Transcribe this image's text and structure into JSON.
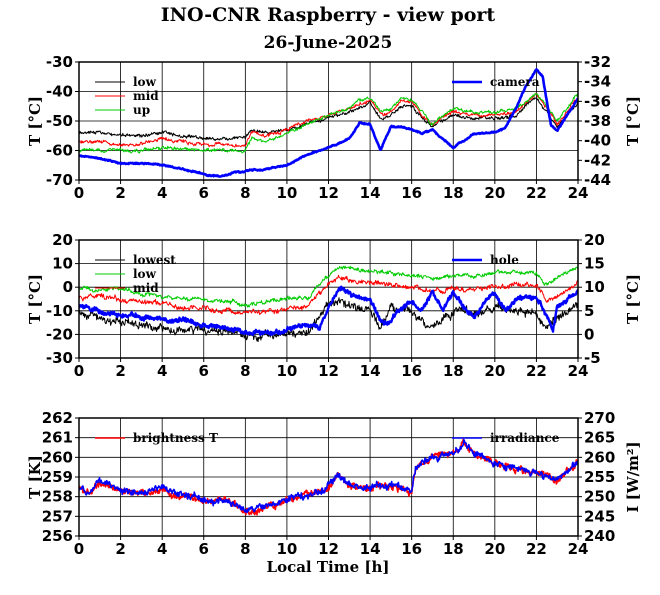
{
  "title": "INO-CNR Raspberry - view port",
  "subtitle": "26-June-2025",
  "xlabel": "Local Time [h]",
  "colors": {
    "black": "#000000",
    "red": "#ff0000",
    "green": "#00cc00",
    "blue": "#0000ff"
  },
  "chart_data": [
    {
      "type": "line",
      "id": "top",
      "xlim": [
        0,
        24
      ],
      "xticks": [
        0,
        2,
        4,
        6,
        8,
        10,
        12,
        14,
        16,
        18,
        20,
        22,
        24
      ],
      "ylim": [
        -70,
        -30
      ],
      "yticks": [
        -70,
        -60,
        -50,
        -40,
        -30
      ],
      "ylabel": "T [°C]",
      "y2lim": [
        -44,
        -32
      ],
      "y2ticks": [
        -44,
        -42,
        -40,
        -38,
        -36,
        -34,
        -32
      ],
      "y2label": "T [°C]",
      "grid": true,
      "legend": "top-left (low, mid, up); top-right (camera)",
      "series": [
        {
          "name": "low",
          "color": "black",
          "axis": "left",
          "width": 1,
          "noise": 0.8,
          "x": [
            0,
            1,
            2,
            3,
            4,
            5,
            6,
            7,
            8,
            8.3,
            9,
            10,
            11,
            12,
            13,
            13.5,
            14,
            14.5,
            15,
            15.5,
            16,
            16.5,
            17,
            18,
            19,
            20,
            21,
            22,
            22.5,
            23,
            24
          ],
          "y": [
            -54,
            -54,
            -55,
            -55,
            -54,
            -55,
            -56,
            -56,
            -56,
            -53,
            -54,
            -53,
            -51,
            -49,
            -47,
            -45,
            -44,
            -49,
            -48,
            -45,
            -45,
            -49,
            -52,
            -48,
            -49,
            -49,
            -48,
            -42,
            -47,
            -52,
            -44
          ]
        },
        {
          "name": "mid",
          "color": "red",
          "axis": "left",
          "width": 1,
          "noise": 0.8,
          "x": [
            0,
            1,
            2,
            3,
            4,
            5,
            6,
            7,
            8,
            8.3,
            9,
            10,
            11,
            12,
            13,
            13.5,
            14,
            14.5,
            15,
            15.5,
            16,
            16.5,
            17,
            18,
            19,
            20,
            21,
            22,
            22.5,
            23,
            24
          ],
          "y": [
            -57,
            -57,
            -58,
            -58,
            -56,
            -57,
            -58,
            -58,
            -58,
            -54,
            -55,
            -53,
            -50,
            -48,
            -46,
            -44,
            -43,
            -48,
            -47,
            -43,
            -43,
            -48,
            -51,
            -47,
            -48,
            -48,
            -47,
            -41,
            -46,
            -51,
            -42
          ]
        },
        {
          "name": "up",
          "color": "green",
          "axis": "left",
          "width": 1,
          "noise": 0.8,
          "x": [
            0,
            1,
            2,
            3,
            4,
            5,
            6,
            7,
            8,
            8.3,
            9,
            10,
            11,
            12,
            13,
            13.5,
            14,
            14.5,
            15,
            15.5,
            16,
            16.5,
            17,
            18,
            19,
            20,
            21,
            22,
            22.5,
            23,
            24
          ],
          "y": [
            -60,
            -60,
            -60,
            -60,
            -59,
            -59,
            -60,
            -60,
            -60,
            -56,
            -57,
            -54,
            -51,
            -48,
            -46,
            -43,
            -42,
            -47,
            -46,
            -42,
            -43,
            -47,
            -51,
            -46,
            -47,
            -47,
            -46,
            -41,
            -45,
            -50,
            -41
          ]
        },
        {
          "name": "camera",
          "color": "blue",
          "axis": "right",
          "width": 2.6,
          "noise": 0.1,
          "x": [
            0,
            1,
            2,
            3,
            4,
            5,
            6,
            6.8,
            7.5,
            8,
            9,
            10,
            11,
            12,
            13,
            13.5,
            14,
            14.5,
            15,
            15.5,
            16,
            16.5,
            17,
            17.5,
            18,
            19,
            20,
            20.5,
            21,
            21.5,
            22,
            22.3,
            22.7,
            23,
            24
          ],
          "y": [
            -41.5,
            -41.8,
            -42.3,
            -42.3,
            -42.5,
            -42.9,
            -43.4,
            -43.7,
            -43.2,
            -43.1,
            -42.9,
            -42.5,
            -41.4,
            -40.7,
            -39.8,
            -38.2,
            -38.3,
            -41.0,
            -38.6,
            -38.6,
            -38.9,
            -39.3,
            -38.9,
            -39.8,
            -40.7,
            -39.3,
            -39.1,
            -38.7,
            -36.8,
            -34.4,
            -32.7,
            -33.5,
            -38.4,
            -39.0,
            -35.7
          ]
        }
      ]
    },
    {
      "type": "line",
      "id": "middle",
      "xlim": [
        0,
        24
      ],
      "xticks": [
        0,
        2,
        4,
        6,
        8,
        10,
        12,
        14,
        16,
        18,
        20,
        22,
        24
      ],
      "ylim": [
        -30,
        20
      ],
      "yticks": [
        -30,
        -20,
        -10,
        0,
        10,
        20
      ],
      "ylabel": "T [°C]",
      "y2lim": [
        -5,
        20
      ],
      "y2ticks": [
        -5,
        0,
        5,
        10,
        15,
        20
      ],
      "y2label": "T [°C]",
      "grid": true,
      "legend": "top-left (lowest, low, mid); top-right (hole)",
      "series": [
        {
          "name": "lowest",
          "color": "black",
          "axis": "left",
          "width": 1,
          "noise": 2.5,
          "x": [
            0,
            1,
            2,
            3,
            4,
            5,
            6,
            7,
            8,
            9,
            10,
            11,
            12,
            13,
            14,
            14.5,
            15,
            16,
            17,
            18,
            19,
            20,
            21,
            22,
            22.5,
            23,
            24
          ],
          "y": [
            -10,
            -13,
            -15,
            -16,
            -17,
            -18,
            -18,
            -19,
            -20,
            -20,
            -20,
            -19,
            -7,
            -7,
            -9,
            -18,
            -9,
            -10,
            -17,
            -10,
            -11,
            -9,
            -10,
            -10,
            -18,
            -13,
            -8
          ]
        },
        {
          "name": "low",
          "color": "green",
          "axis": "left",
          "width": 1,
          "noise": 1.2,
          "x": [
            0,
            1,
            2,
            3,
            4,
            5,
            6,
            7,
            8,
            9,
            10,
            11,
            12,
            12.5,
            13,
            14,
            15,
            16,
            17,
            18,
            19,
            20,
            21,
            22,
            22.5,
            23,
            24
          ],
          "y": [
            0,
            -1,
            -1,
            -3,
            -4,
            -5,
            -5,
            -6,
            -7,
            -6,
            -5,
            -4,
            5,
            9,
            8,
            7,
            6,
            5,
            4,
            5,
            5,
            6,
            6,
            6,
            1,
            4,
            8
          ]
        },
        {
          "name": "mid",
          "color": "red",
          "axis": "left",
          "width": 1,
          "noise": 1.5,
          "x": [
            0,
            1,
            2,
            3,
            4,
            5,
            6,
            7,
            8,
            9,
            10,
            11,
            12,
            12.5,
            13,
            14,
            15,
            16,
            17,
            18,
            19,
            20,
            21,
            22,
            22.5,
            23,
            24
          ],
          "y": [
            -4,
            -4,
            -5,
            -6,
            -7,
            -8,
            -9,
            -10,
            -11,
            -10,
            -9,
            -8,
            1,
            4,
            3,
            2,
            1,
            0,
            -2,
            0,
            -1,
            0,
            1,
            0,
            -5,
            -4,
            2
          ]
        },
        {
          "name": "hole",
          "color": "blue",
          "axis": "right",
          "width": 2.4,
          "noise": 0.7,
          "x": [
            0,
            1,
            2,
            3,
            4,
            5,
            6,
            7,
            8,
            8.5,
            9,
            10,
            11,
            11.6,
            12,
            12.5,
            13,
            13.5,
            14,
            14.5,
            14.8,
            15.3,
            16,
            16.5,
            17,
            17.5,
            18,
            18.5,
            19,
            19.5,
            20,
            20.5,
            21,
            21.5,
            22,
            22.5,
            22.8,
            23,
            24
          ],
          "y": [
            6,
            5,
            4,
            4,
            3.5,
            3,
            2,
            1.5,
            0.5,
            0.3,
            0,
            1,
            2,
            2,
            6,
            10,
            9,
            8,
            7,
            3,
            2,
            5,
            7,
            5,
            9,
            5,
            9,
            6,
            3,
            7,
            9,
            5,
            7,
            8,
            8,
            4,
            1,
            6,
            9
          ]
        }
      ]
    },
    {
      "type": "line",
      "id": "bottom",
      "xlim": [
        0,
        24
      ],
      "xticks": [
        0,
        2,
        4,
        6,
        8,
        10,
        12,
        14,
        16,
        18,
        20,
        22,
        24
      ],
      "ylim": [
        256,
        262
      ],
      "yticks": [
        256,
        257,
        258,
        259,
        260,
        261,
        262
      ],
      "ylabel": "T [K]",
      "y2lim": [
        240,
        270
      ],
      "y2ticks": [
        240,
        245,
        250,
        255,
        260,
        265,
        270
      ],
      "y2label": "I [W/m²]",
      "grid": true,
      "legend": "top-left (brightness T); top-right (irradiance)",
      "series": [
        {
          "name": "brightness T",
          "color": "red",
          "axis": "left",
          "width": 1.6,
          "noise": 0.25,
          "x": [
            0,
            0.5,
            1,
            1.5,
            2,
            3,
            4,
            5,
            6,
            7,
            8,
            9,
            9.5,
            10,
            11,
            12,
            12.5,
            13,
            14,
            15,
            16,
            16.2,
            17,
            18,
            18.5,
            19,
            20,
            21,
            22,
            23,
            24
          ],
          "y": [
            258.5,
            258.2,
            258.7,
            258.5,
            258.3,
            258.2,
            258.3,
            258.1,
            257.8,
            257.9,
            257.3,
            257.5,
            257.7,
            257.9,
            258.1,
            258.5,
            259.1,
            258.6,
            258.5,
            258.5,
            258.3,
            259.5,
            260.0,
            260.2,
            260.7,
            260.3,
            259.6,
            259.4,
            259.2,
            258.9,
            259.7
          ]
        },
        {
          "name": "irradiance",
          "color": "blue",
          "axis": "right",
          "width": 1.6,
          "noise": 1.2,
          "x": [
            0,
            0.5,
            1,
            1.5,
            2,
            3,
            4,
            5,
            6,
            7,
            8,
            9,
            9.5,
            10,
            11,
            12,
            12.5,
            13,
            14,
            15,
            16,
            16.2,
            17,
            18,
            18.5,
            19,
            20,
            21,
            22,
            23,
            24
          ],
          "y": [
            252.5,
            251,
            253.5,
            252.5,
            251.5,
            251,
            251.5,
            250.5,
            249,
            249.5,
            247,
            247.5,
            248.5,
            249.5,
            250.5,
            252.5,
            255.5,
            253,
            252.5,
            252.5,
            251.5,
            257.5,
            260,
            261,
            263.5,
            261.5,
            258,
            257,
            256,
            254.5,
            258.5
          ]
        }
      ]
    }
  ]
}
